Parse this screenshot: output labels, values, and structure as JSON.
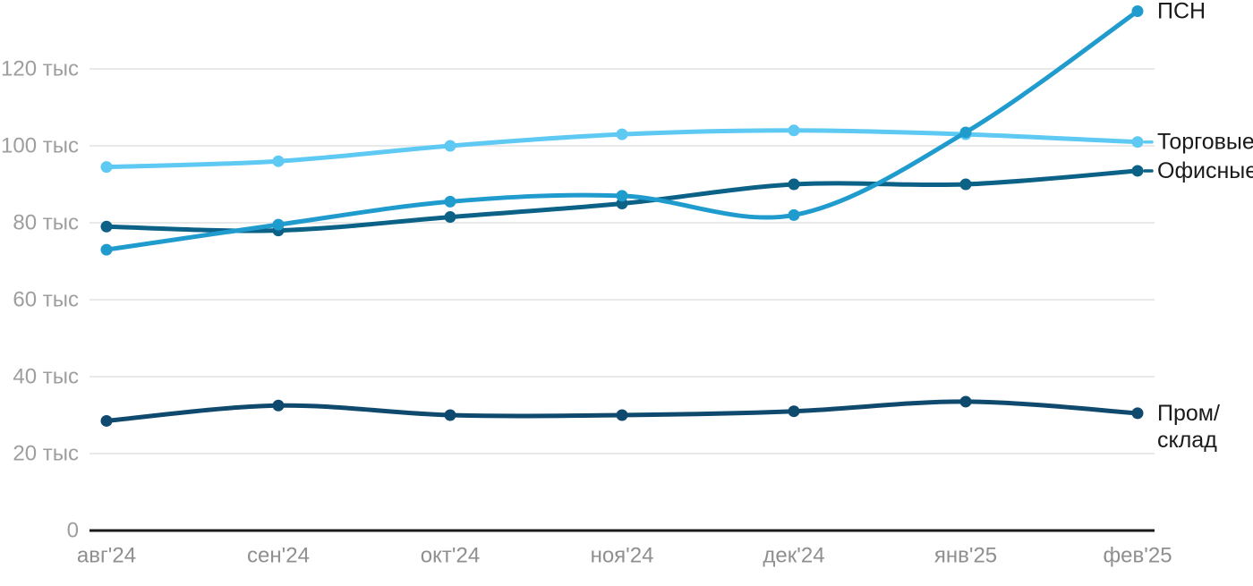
{
  "chart_data": {
    "type": "line",
    "title": "",
    "xlabel": "",
    "ylabel": "",
    "unit_suffix": " тыс",
    "categories": [
      "авг'24",
      "сен'24",
      "окт'24",
      "ноя'24",
      "дек'24",
      "янв'25",
      "фев'25"
    ],
    "y_ticks": [
      {
        "value": 0,
        "label": "0"
      },
      {
        "value": 20,
        "label": "20 тыс"
      },
      {
        "value": 40,
        "label": "40 тыс"
      },
      {
        "value": 60,
        "label": "60 тыс"
      },
      {
        "value": 80,
        "label": "80 тыс"
      },
      {
        "value": 100,
        "label": "100 тыс"
      },
      {
        "value": 120,
        "label": "120 тыс"
      }
    ],
    "ylim": [
      0,
      135
    ],
    "grid": true,
    "legend_position": "right-end-labels",
    "series": [
      {
        "name": "Торговые",
        "color": "#5ec9f3",
        "values": [
          94.5,
          96,
          100,
          103,
          104,
          103,
          101
        ],
        "label_lines": [
          "Торговые"
        ],
        "end_dash": true
      },
      {
        "name": "Офисные",
        "color": "#0c6187",
        "values": [
          79,
          78,
          81.5,
          85,
          90,
          90,
          93.5
        ],
        "label_lines": [
          "Офисные"
        ],
        "end_dash": true
      },
      {
        "name": "ПСН",
        "color": "#1f9bce",
        "values": [
          73,
          79.5,
          85.5,
          87,
          82,
          103.5,
          135
        ],
        "label_lines": [
          "ПСН"
        ],
        "end_dash": false
      },
      {
        "name": "Пром/склад",
        "color": "#0f4a6e",
        "values": [
          28.5,
          32.5,
          30,
          30,
          31,
          33.5,
          30.5
        ],
        "label_lines": [
          "Пром/",
          "склад"
        ],
        "end_dash": false
      }
    ],
    "colors": {
      "grid_line": "#e9e9e9",
      "axis_line": "#1a1a1a",
      "y_tick_text": "#9e9e9e",
      "x_tick_text": "#8f8f8f",
      "end_label_text": "#1a1a1a",
      "background": "#ffffff"
    }
  }
}
